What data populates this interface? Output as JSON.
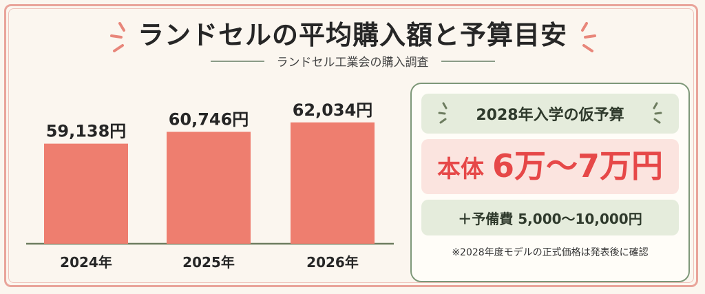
{
  "header": {
    "title": "ランドセルの平均購入額と予算目安",
    "subtitle": "ランドセル工業会の購入調査"
  },
  "colors": {
    "bar": "#ee7e6f",
    "baseline": "#6d7c5f",
    "accent": "#e64848",
    "green_box": "#e5ecdc",
    "pink_box": "#fbe4df",
    "spark": "#e8867a"
  },
  "chart_data": {
    "type": "bar",
    "categories": [
      "2024年",
      "2025年",
      "2026年"
    ],
    "values": [
      59138,
      60746,
      62034
    ],
    "value_labels": [
      "59,138円",
      "60,746円",
      "62,034円"
    ],
    "title": "",
    "xlabel": "",
    "ylabel": "",
    "ylim": [
      45500,
      63700
    ],
    "grid": false,
    "legend": "none"
  },
  "budget": {
    "title": "2028年入学の仮予算",
    "main_prefix": "本体",
    "main_value": "6万〜7万円",
    "reserve": "＋予備費 5,000〜10,000円",
    "note": "※2028年度モデルの正式価格は発表後に確認"
  }
}
